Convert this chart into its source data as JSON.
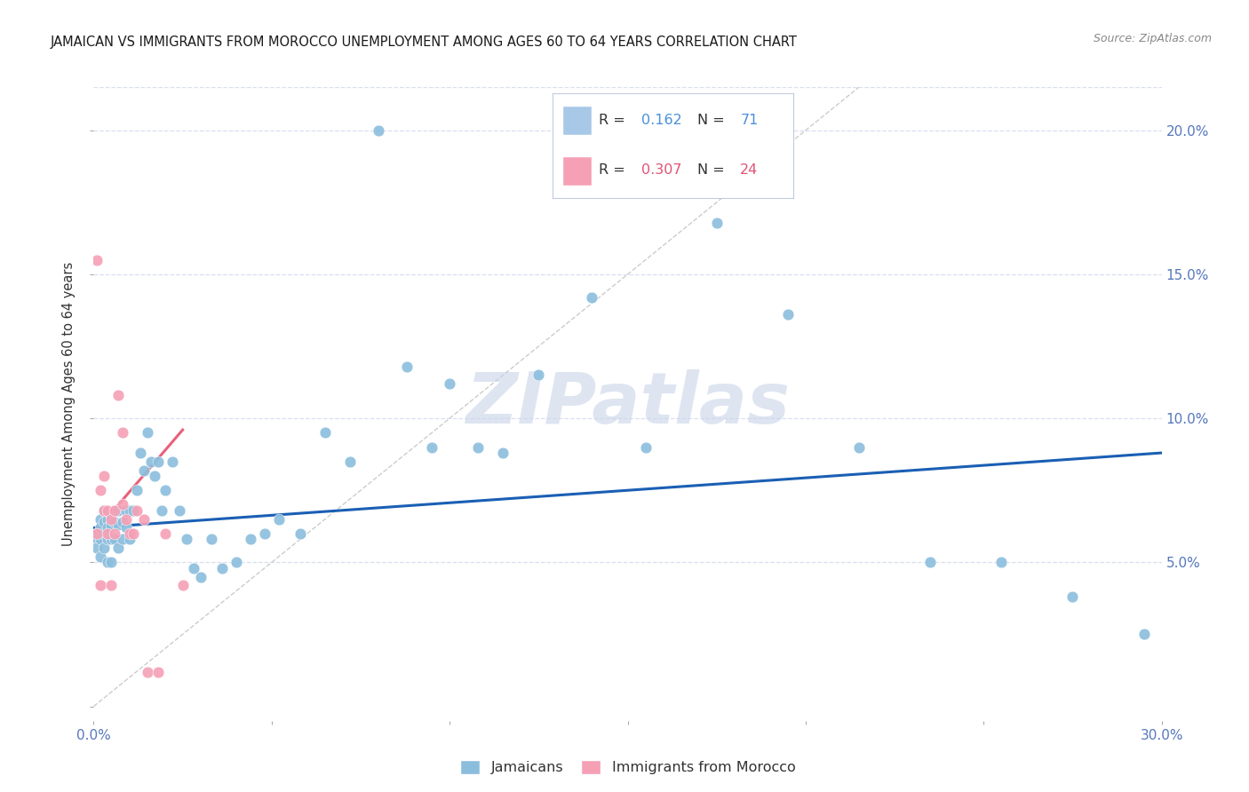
{
  "title": "JAMAICAN VS IMMIGRANTS FROM MOROCCO UNEMPLOYMENT AMONG AGES 60 TO 64 YEARS CORRELATION CHART",
  "source": "Source: ZipAtlas.com",
  "xlim": [
    0.0,
    0.3
  ],
  "ylim": [
    -0.005,
    0.215
  ],
  "jamaicans_x": [
    0.001,
    0.001,
    0.001,
    0.002,
    0.002,
    0.002,
    0.002,
    0.003,
    0.003,
    0.003,
    0.003,
    0.004,
    0.004,
    0.004,
    0.004,
    0.005,
    0.005,
    0.005,
    0.005,
    0.006,
    0.006,
    0.006,
    0.007,
    0.007,
    0.007,
    0.008,
    0.008,
    0.009,
    0.009,
    0.01,
    0.01,
    0.011,
    0.012,
    0.013,
    0.014,
    0.015,
    0.016,
    0.017,
    0.018,
    0.019,
    0.02,
    0.022,
    0.024,
    0.026,
    0.028,
    0.03,
    0.033,
    0.036,
    0.04,
    0.044,
    0.048,
    0.052,
    0.058,
    0.065,
    0.072,
    0.08,
    0.088,
    0.095,
    0.1,
    0.108,
    0.115,
    0.125,
    0.14,
    0.155,
    0.175,
    0.195,
    0.215,
    0.235,
    0.255,
    0.275,
    0.295
  ],
  "jamaicans_y": [
    0.06,
    0.058,
    0.055,
    0.065,
    0.062,
    0.058,
    0.052,
    0.068,
    0.064,
    0.06,
    0.055,
    0.065,
    0.062,
    0.058,
    0.05,
    0.066,
    0.063,
    0.058,
    0.05,
    0.068,
    0.064,
    0.058,
    0.068,
    0.063,
    0.055,
    0.064,
    0.058,
    0.068,
    0.062,
    0.068,
    0.058,
    0.068,
    0.075,
    0.088,
    0.082,
    0.095,
    0.085,
    0.08,
    0.085,
    0.068,
    0.075,
    0.085,
    0.068,
    0.058,
    0.048,
    0.045,
    0.058,
    0.048,
    0.05,
    0.058,
    0.06,
    0.065,
    0.06,
    0.095,
    0.085,
    0.2,
    0.118,
    0.09,
    0.112,
    0.09,
    0.088,
    0.115,
    0.142,
    0.09,
    0.168,
    0.136,
    0.09,
    0.05,
    0.05,
    0.038,
    0.025
  ],
  "morocco_x": [
    0.001,
    0.001,
    0.002,
    0.002,
    0.003,
    0.003,
    0.004,
    0.004,
    0.005,
    0.005,
    0.006,
    0.006,
    0.007,
    0.008,
    0.008,
    0.009,
    0.01,
    0.011,
    0.012,
    0.014,
    0.015,
    0.018,
    0.02,
    0.025
  ],
  "morocco_y": [
    0.155,
    0.06,
    0.075,
    0.042,
    0.08,
    0.068,
    0.068,
    0.06,
    0.065,
    0.042,
    0.06,
    0.068,
    0.108,
    0.07,
    0.095,
    0.065,
    0.06,
    0.06,
    0.068,
    0.065,
    0.012,
    0.012,
    0.06,
    0.042
  ],
  "blue_line_x": [
    0.0,
    0.3
  ],
  "blue_line_y": [
    0.062,
    0.088
  ],
  "pink_line_x": [
    0.0,
    0.025
  ],
  "pink_line_y": [
    0.06,
    0.096
  ],
  "diag_line_x": [
    0.0,
    0.215
  ],
  "diag_line_y": [
    0.0,
    0.215
  ],
  "dot_color_jamaicans": "#8bbedd",
  "dot_color_morocco": "#f5a0b5",
  "blue_line_color": "#1a5fb4",
  "pink_line_color": "#e8607a",
  "diag_line_color": "#cccccc",
  "title_color": "#1a1a1a",
  "axis_color": "#5577bb",
  "grid_color": "#d8dff0",
  "background_color": "#ffffff",
  "watermark": "ZIPatlas",
  "watermark_color": "#c8d4e8",
  "legend_R1_color": "#4a90d9",
  "legend_N1_color": "#4a90d9",
  "legend_R2_color": "#e05575",
  "legend_N2_color": "#e05575",
  "legend_box_color": "#a8c8e8",
  "legend_box2_color": "#f5a0b5"
}
